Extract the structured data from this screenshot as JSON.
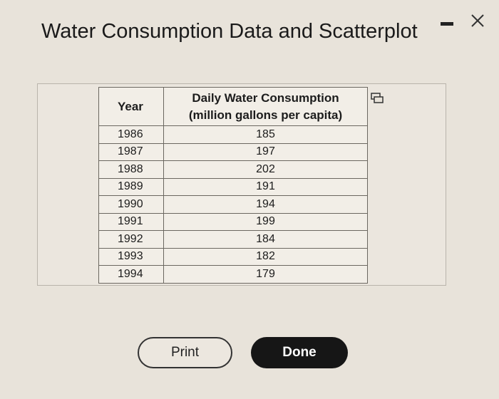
{
  "header": {
    "title": "Water Consumption Data and Scatterplot"
  },
  "table": {
    "columns": [
      "Year",
      [
        "Daily Water Consumption",
        "(million gallons per capita)"
      ]
    ],
    "rows": [
      [
        1986,
        185
      ],
      [
        1987,
        197
      ],
      [
        1988,
        202
      ],
      [
        1989,
        191
      ],
      [
        1990,
        194
      ],
      [
        1991,
        199
      ],
      [
        1992,
        184
      ],
      [
        1993,
        182
      ],
      [
        1994,
        179
      ]
    ]
  },
  "buttons": [
    "Print",
    "Done"
  ]
}
